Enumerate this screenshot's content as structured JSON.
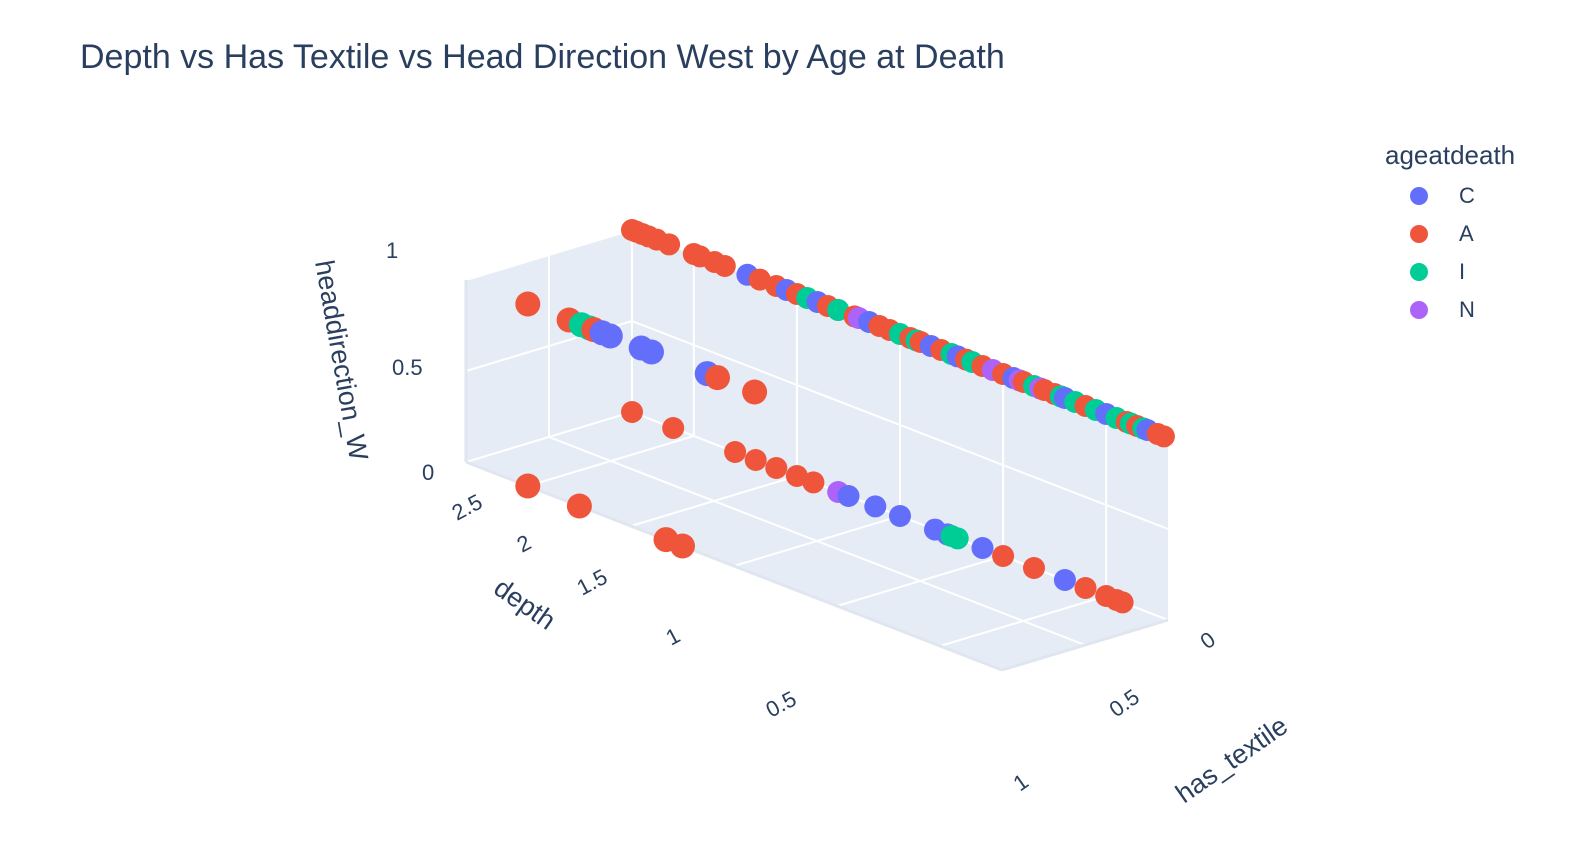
{
  "title": "Depth vs Has Textile vs Head Direction West by Age at Death",
  "chart_data": {
    "type": "scatter3d",
    "title": "Depth vs Has Textile vs Head Direction West by Age at Death",
    "axes": {
      "x": {
        "title": "has_textile",
        "ticks": [
          "0",
          "0.5",
          "1"
        ],
        "range": [
          0,
          1
        ]
      },
      "y": {
        "title": "depth",
        "ticks": [
          "0.5",
          "1",
          "1.5",
          "2",
          "2.5"
        ],
        "range": [
          0.2,
          2.8
        ]
      },
      "z": {
        "title": "headdirection_W",
        "ticks": [
          "0",
          "0.5",
          "1"
        ],
        "range": [
          0,
          1
        ]
      }
    },
    "legend": {
      "title": "ageatdeath",
      "position": "top-right",
      "entries": [
        {
          "name": "C",
          "color": "#636efa"
        },
        {
          "name": "A",
          "color": "#EF553B"
        },
        {
          "name": "I",
          "color": "#00cc96"
        },
        {
          "name": "N",
          "color": "#ab63fa"
        }
      ]
    },
    "series": [
      {
        "name": "C",
        "points": [
          [
            0,
            2.24,
            1
          ],
          [
            0,
            2.05,
            1
          ],
          [
            0,
            1.9,
            1
          ],
          [
            0,
            1.65,
            1
          ],
          [
            0,
            1.35,
            1
          ],
          [
            0,
            1.22,
            1
          ],
          [
            0,
            0.95,
            1
          ],
          [
            0,
            0.7,
            1
          ],
          [
            0,
            0.5,
            1
          ],
          [
            0,
            0.3,
            1
          ],
          [
            1,
            2.14,
            1
          ],
          [
            1,
            2.1,
            1
          ],
          [
            1,
            1.95,
            1
          ],
          [
            1,
            1.9,
            1
          ],
          [
            1,
            1.63,
            1
          ],
          [
            0,
            1.75,
            0
          ],
          [
            0,
            1.62,
            0
          ],
          [
            0,
            1.5,
            0
          ],
          [
            0,
            1.33,
            0
          ],
          [
            0,
            1.27,
            0
          ],
          [
            0,
            1.1,
            0
          ],
          [
            0,
            0.7,
            0
          ]
        ]
      },
      {
        "name": "A",
        "points": [
          [
            0,
            2.8,
            1
          ],
          [
            0,
            2.78,
            1
          ],
          [
            0,
            2.75,
            1
          ],
          [
            0,
            2.72,
            1
          ],
          [
            0,
            2.68,
            1
          ],
          [
            0,
            2.62,
            1
          ],
          [
            0,
            2.5,
            1
          ],
          [
            0,
            2.47,
            1
          ],
          [
            0,
            2.4,
            1
          ],
          [
            0,
            2.35,
            1
          ],
          [
            0,
            2.18,
            1
          ],
          [
            0,
            2.1,
            1
          ],
          [
            0,
            2.0,
            1
          ],
          [
            0,
            1.85,
            1
          ],
          [
            0,
            1.8,
            1
          ],
          [
            0,
            1.72,
            1
          ],
          [
            0,
            1.6,
            1
          ],
          [
            0,
            1.55,
            1
          ],
          [
            0,
            1.45,
            1
          ],
          [
            0,
            1.4,
            1
          ],
          [
            0,
            1.3,
            1
          ],
          [
            0,
            1.18,
            1
          ],
          [
            0,
            1.1,
            1
          ],
          [
            0,
            1.0,
            1
          ],
          [
            0,
            0.9,
            1
          ],
          [
            0,
            0.8,
            1
          ],
          [
            0,
            0.75,
            1
          ],
          [
            0,
            0.6,
            1
          ],
          [
            0,
            0.4,
            1
          ],
          [
            0,
            0.35,
            1
          ],
          [
            0,
            0.25,
            1
          ],
          [
            0,
            0.22,
            1
          ],
          [
            1,
            2.5,
            1
          ],
          [
            1,
            2.3,
            1
          ],
          [
            1,
            2.18,
            1
          ],
          [
            1,
            1.58,
            1
          ],
          [
            1,
            1.4,
            1
          ],
          [
            0,
            2.8,
            0
          ],
          [
            0,
            2.6,
            0
          ],
          [
            0,
            2.3,
            0
          ],
          [
            0,
            2.2,
            0
          ],
          [
            0,
            2.1,
            0
          ],
          [
            0,
            2.0,
            0
          ],
          [
            0,
            1.92,
            0
          ],
          [
            0,
            1.0,
            0
          ],
          [
            0,
            0.85,
            0
          ],
          [
            0,
            0.6,
            0
          ],
          [
            0,
            0.5,
            0
          ],
          [
            0,
            0.45,
            0
          ],
          [
            0,
            0.42,
            0
          ],
          [
            1,
            2.5,
            0
          ],
          [
            1,
            2.25,
            0
          ],
          [
            1,
            1.83,
            0
          ],
          [
            1,
            1.75,
            0
          ]
        ]
      },
      {
        "name": "I",
        "points": [
          [
            0,
            1.95,
            1
          ],
          [
            0,
            1.8,
            1
          ],
          [
            0,
            1.5,
            1
          ],
          [
            0,
            1.42,
            1
          ],
          [
            0,
            1.25,
            1
          ],
          [
            0,
            1.15,
            1
          ],
          [
            0,
            0.85,
            1
          ],
          [
            0,
            0.72,
            1
          ],
          [
            0,
            0.65,
            1
          ],
          [
            0,
            0.55,
            1
          ],
          [
            0,
            0.45,
            1
          ],
          [
            0,
            0.38,
            1
          ],
          [
            0,
            0.32,
            1
          ],
          [
            1,
            2.24,
            1
          ],
          [
            1,
            2.2,
            1
          ],
          [
            0,
            1.25,
            0
          ],
          [
            0,
            1.22,
            0
          ]
        ]
      },
      {
        "name": "N",
        "points": [
          [
            0,
            1.7,
            1
          ],
          [
            0,
            1.05,
            1
          ],
          [
            0,
            0.92,
            1
          ],
          [
            0,
            0.82,
            1
          ],
          [
            0,
            1.8,
            0
          ]
        ]
      }
    ]
  }
}
